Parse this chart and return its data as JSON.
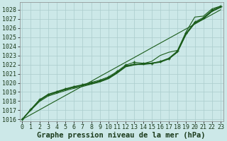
{
  "bg_color": "#cce8e8",
  "grid_color": "#aacccc",
  "line_color": "#1a5c1a",
  "title": "Graphe pression niveau de la mer (hPa)",
  "title_fontsize": 7.5,
  "tick_fontsize": 6.0,
  "xlim": [
    -0.3,
    23.3
  ],
  "ylim": [
    1015.8,
    1028.8
  ],
  "yticks": [
    1016,
    1017,
    1018,
    1019,
    1020,
    1021,
    1022,
    1023,
    1024,
    1025,
    1026,
    1027,
    1028
  ],
  "xticks": [
    0,
    1,
    2,
    3,
    4,
    5,
    6,
    7,
    8,
    9,
    10,
    11,
    12,
    13,
    14,
    15,
    16,
    17,
    18,
    19,
    20,
    21,
    22,
    23
  ],
  "straight_line": [
    1016.0,
    1016.52,
    1017.04,
    1017.57,
    1018.09,
    1018.61,
    1019.13,
    1019.65,
    1020.17,
    1020.7,
    1021.22,
    1021.74,
    1022.26,
    1022.78,
    1023.3,
    1023.83,
    1024.35,
    1024.87,
    1025.39,
    1025.91,
    1026.43,
    1026.96,
    1027.48,
    1028.0
  ],
  "clustered_lines": [
    [
      1016.0,
      1017.1,
      1018.1,
      1018.7,
      1019.0,
      1019.3,
      1019.55,
      1019.75,
      1019.95,
      1020.2,
      1020.55,
      1021.15,
      1021.85,
      1022.05,
      1022.05,
      1022.15,
      1022.3,
      1022.65,
      1023.4,
      1025.35,
      1026.55,
      1027.05,
      1027.85,
      1028.3
    ],
    [
      1016.0,
      1017.1,
      1018.1,
      1018.7,
      1019.0,
      1019.3,
      1019.55,
      1019.75,
      1019.95,
      1020.2,
      1020.55,
      1021.15,
      1021.85,
      1022.05,
      1022.05,
      1022.15,
      1022.3,
      1022.65,
      1023.4,
      1025.35,
      1026.55,
      1027.05,
      1027.85,
      1028.3
    ],
    [
      1016.0,
      1017.05,
      1018.05,
      1018.65,
      1018.95,
      1019.25,
      1019.5,
      1019.7,
      1019.9,
      1020.15,
      1020.5,
      1021.1,
      1021.8,
      1022.0,
      1022.0,
      1022.1,
      1022.25,
      1022.6,
      1023.35,
      1025.3,
      1026.5,
      1027.0,
      1027.8,
      1028.25
    ]
  ],
  "marker_line": [
    1016.0,
    1017.1,
    1018.15,
    1018.75,
    1019.05,
    1019.35,
    1019.6,
    1019.8,
    1020.05,
    1020.3,
    1020.65,
    1021.25,
    1021.95,
    1022.25,
    1022.15,
    1022.15,
    1022.35,
    1022.7,
    1023.5,
    1025.45,
    1026.65,
    1027.15,
    1027.95,
    1028.4
  ],
  "upper_line": [
    1016.0,
    1017.0,
    1017.95,
    1018.55,
    1018.85,
    1019.15,
    1019.4,
    1019.6,
    1019.85,
    1020.1,
    1020.45,
    1021.05,
    1021.75,
    1021.95,
    1022.1,
    1022.35,
    1023.0,
    1023.35,
    1023.55,
    1025.6,
    1027.2,
    1027.3,
    1028.1,
    1028.4
  ]
}
